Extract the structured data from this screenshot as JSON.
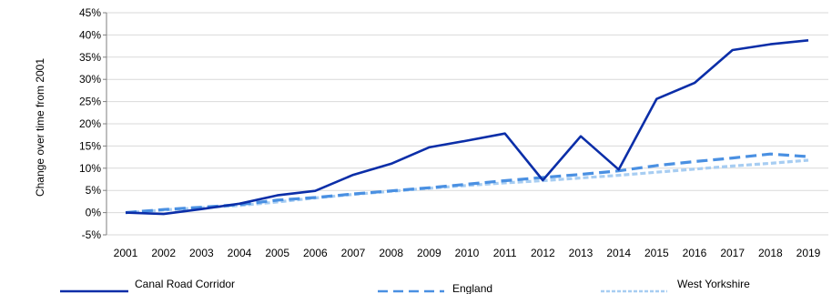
{
  "chart_data": {
    "type": "line",
    "ylabel": "Change over  time from 2001",
    "xlabel": "",
    "categories": [
      "2001",
      "2002",
      "2003",
      "2004",
      "2005",
      "2006",
      "2007",
      "2008",
      "2009",
      "2010",
      "2011",
      "2012",
      "2013",
      "2014",
      "2015",
      "2016",
      "2017",
      "2018",
      "2019"
    ],
    "ylim": [
      -5,
      45
    ],
    "yticks": [
      -5,
      0,
      5,
      10,
      15,
      20,
      25,
      30,
      35,
      40,
      45
    ],
    "ytick_labels": [
      "-5%",
      "0%",
      "5%",
      "10%",
      "15%",
      "20%",
      "25%",
      "30%",
      "35%",
      "40%",
      "45%"
    ],
    "grid": "horizontal",
    "legend_position": "bottom",
    "series": [
      {
        "name": "Canal Road Corridor",
        "color": "#0b2ea8",
        "style": "solid",
        "values": [
          0,
          -0.3,
          0.8,
          2,
          3.9,
          4.9,
          8.5,
          11,
          14.7,
          16.2,
          17.8,
          7.3,
          17.2,
          9.7,
          25.6,
          29.2,
          36.6,
          37.9,
          38.8
        ]
      },
      {
        "name": "England",
        "color": "#4a90e2",
        "style": "dashed",
        "values": [
          0,
          0.7,
          1.2,
          1.8,
          2.8,
          3.4,
          4.2,
          4.9,
          5.6,
          6.4,
          7.2,
          7.9,
          8.6,
          9.4,
          10.6,
          11.5,
          12.3,
          13.2,
          12.6
        ]
      },
      {
        "name": "West Yorkshire",
        "color": "#a7cdf2",
        "style": "dotted",
        "values": [
          0,
          0.6,
          1.1,
          1.6,
          2.4,
          3.3,
          4.1,
          4.8,
          5.5,
          6.1,
          6.7,
          7.2,
          7.8,
          8.4,
          9.1,
          9.8,
          10.5,
          11.1,
          11.8
        ]
      }
    ]
  }
}
